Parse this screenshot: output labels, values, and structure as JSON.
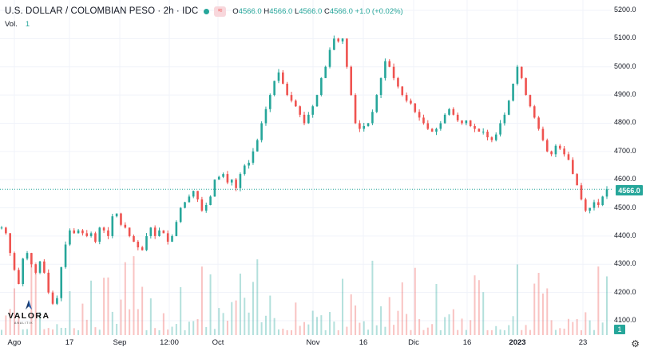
{
  "header": {
    "symbol": "U.S. DOLLAR / COLOMBIAN PESO · 2h · IDC",
    "ohlc": {
      "o_label": "O",
      "o": "4566.0",
      "h_label": "H",
      "h": "4566.0",
      "l_label": "L",
      "l": "4566.0",
      "c_label": "C",
      "c": "4566.0",
      "change": "+1.0 (+0.02%)"
    },
    "vol_label": "Vol.",
    "vol_value": "1"
  },
  "logo": {
    "name": "VALORA",
    "sub": "ANALITIK"
  },
  "icons": {
    "status": "status-dot-icon",
    "indicator": "wave-icon",
    "settings": "gear-icon"
  },
  "colors": {
    "up": "#26a69a",
    "down": "#ef5350",
    "grid": "#f0f3fa",
    "current_price_line": "#26a69a"
  },
  "chart_data": {
    "type": "candlestick",
    "y_ticks": [
      "5200.0",
      "5100.0",
      "5000.0",
      "4900.0",
      "4800.0",
      "4700.0",
      "4600.0",
      "4500.0",
      "4400.0",
      "4300.0",
      "4200.0",
      "4100.0"
    ],
    "ylim": [
      4080,
      5220
    ],
    "x_ticks": [
      "Ago",
      "17",
      "Sep",
      "12:00",
      "Oct",
      "Nov",
      "16",
      "Dic",
      "16",
      "2023",
      "23"
    ],
    "current_price": 4566.0,
    "current_price_label": "4566.0",
    "current_volume_label": "1",
    "close_path": [
      4430,
      4410,
      4340,
      4280,
      4230,
      4320,
      4340,
      4300,
      4270,
      4310,
      4270,
      4200,
      4160,
      4180,
      4290,
      4370,
      4420,
      4410,
      4420,
      4410,
      4400,
      4410,
      4380,
      4430,
      4420,
      4400,
      4470,
      4480,
      4440,
      4430,
      4400,
      4380,
      4360,
      4350,
      4400,
      4430,
      4400,
      4420,
      4410,
      4380,
      4400,
      4450,
      4500,
      4520,
      4540,
      4560,
      4530,
      4490,
      4510,
      4540,
      4600,
      4610,
      4620,
      4590,
      4600,
      4570,
      4620,
      4650,
      4660,
      4700,
      4740,
      4800,
      4850,
      4900,
      4950,
      4980,
      4940,
      4900,
      4880,
      4860,
      4830,
      4800,
      4830,
      4860,
      4900,
      4960,
      5000,
      5060,
      5100,
      5090,
      5100,
      5000,
      4900,
      4800,
      4780,
      4790,
      4800,
      4840,
      4900,
      4960,
      5020,
      5000,
      4960,
      4930,
      4900,
      4880,
      4870,
      4840,
      4820,
      4800,
      4780,
      4770,
      4780,
      4800,
      4830,
      4850,
      4830,
      4810,
      4800,
      4810,
      4790,
      4780,
      4770,
      4770,
      4750,
      4740,
      4760,
      4800,
      4830,
      4880,
      4940,
      5000,
      4960,
      4900,
      4860,
      4820,
      4780,
      4740,
      4700,
      4690,
      4720,
      4710,
      4690,
      4670,
      4620,
      4580,
      4530,
      4490,
      4500,
      4520,
      4510,
      4540,
      4566
    ]
  }
}
